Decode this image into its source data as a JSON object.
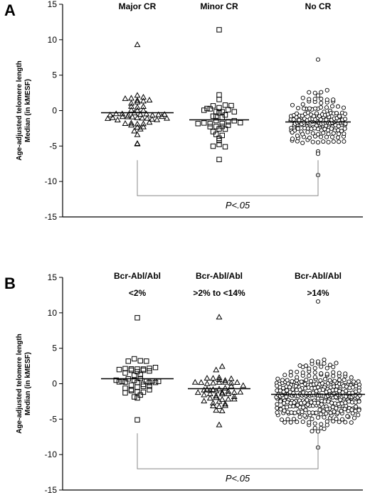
{
  "chart_data": [
    {
      "type": "scatter",
      "panel": "A",
      "ylabel": "Age-adjusted telomere length",
      "ylabel2": "Median (in kMESF)",
      "ylim": [
        -15,
        15
      ],
      "yticks": [
        "15",
        "10",
        "5",
        "0",
        "-5",
        "-10",
        "-15"
      ],
      "groups": [
        {
          "label": "Major CR",
          "label2": "",
          "marker": "triangle",
          "median": -0.3,
          "n": 52,
          "min": -4.7,
          "max": 9.3,
          "seed": 11
        },
        {
          "label": "Minor CR",
          "label2": "",
          "marker": "square",
          "median": -1.3,
          "n": 42,
          "min": -6.9,
          "max": 11.4,
          "seed": 23
        },
        {
          "label": "No CR",
          "label2": "",
          "marker": "circle",
          "median": -1.6,
          "n": 170,
          "min": -9.1,
          "max": 7.2,
          "seed": 37
        }
      ],
      "comparison": {
        "text": "P<.05",
        "from_group": 0,
        "to_group": 2,
        "y": -12
      }
    },
    {
      "type": "scatter",
      "panel": "B",
      "ylabel": "Age-adjusted telomere length",
      "ylabel2": "Median (in kMESF)",
      "ylim": [
        -15,
        15
      ],
      "yticks": [
        "15",
        "10",
        "5",
        "0",
        "-5",
        "-10",
        "-15"
      ],
      "groups": [
        {
          "label": "Bcr-Abl/Abl",
          "label2": "<2%",
          "marker": "square",
          "median": 0.7,
          "n": 48,
          "min": -5.1,
          "max": 9.3,
          "seed": 41
        },
        {
          "label": "Bcr-Abl/Abl",
          "label2": ">2% to <14%",
          "marker": "triangle",
          "median": -0.7,
          "n": 52,
          "min": -5.8,
          "max": 9.4,
          "seed": 53
        },
        {
          "label": "Bcr-Abl/Abl",
          "label2": ">14%",
          "marker": "circle",
          "median": -1.5,
          "n": 330,
          "min": -9.0,
          "max": 11.6,
          "seed": 67
        }
      ],
      "comparison": {
        "text": "P<.05",
        "from_group": 0,
        "to_group": 2,
        "y": -12
      }
    }
  ]
}
